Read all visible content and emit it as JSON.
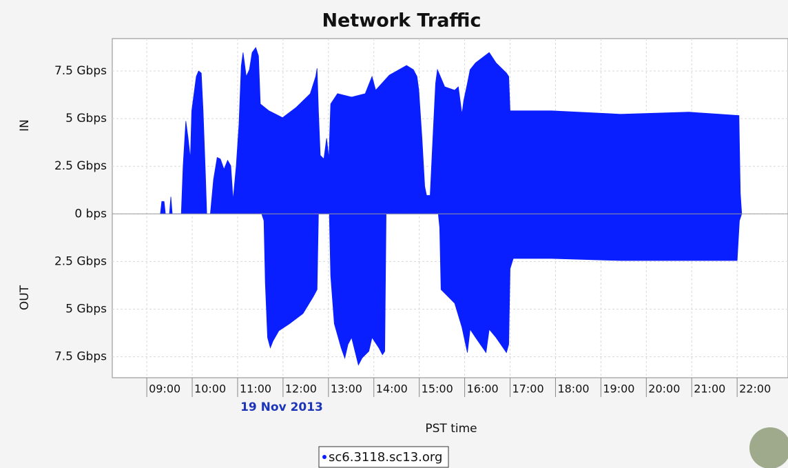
{
  "chart_data": {
    "type": "area",
    "title": "Network Traffic",
    "ylabel_top": "IN",
    "ylabel_bottom": "OUT",
    "xlabel": "PST time",
    "date_label": "19 Nov 2013",
    "xlim": [
      8.24,
      23.12
    ],
    "ylim": [
      -8.6,
      9.2
    ],
    "grid": true,
    "xticks": [
      {
        "value": 9,
        "label": "09:00"
      },
      {
        "value": 10,
        "label": "10:00"
      },
      {
        "value": 11,
        "label": "11:00"
      },
      {
        "value": 12,
        "label": "12:00"
      },
      {
        "value": 13,
        "label": "13:00"
      },
      {
        "value": 14,
        "label": "14:00"
      },
      {
        "value": 15,
        "label": "15:00"
      },
      {
        "value": 16,
        "label": "16:00"
      },
      {
        "value": 17,
        "label": "17:00"
      },
      {
        "value": 18,
        "label": "18:00"
      },
      {
        "value": 19,
        "label": "19:00"
      },
      {
        "value": 20,
        "label": "20:00"
      },
      {
        "value": 21,
        "label": "21:00"
      },
      {
        "value": 22,
        "label": "22:00"
      }
    ],
    "yticks": [
      {
        "value": 7.5,
        "label": "7.5 Gbps"
      },
      {
        "value": 5,
        "label": "5 Gbps"
      },
      {
        "value": 2.5,
        "label": "2.5 Gbps"
      },
      {
        "value": 0,
        "label": "0 bps"
      },
      {
        "value": -2.5,
        "label": "2.5 Gbps"
      },
      {
        "value": -5,
        "label": "5 Gbps"
      },
      {
        "value": -7.5,
        "label": "7.5 Gbps"
      }
    ],
    "series": [
      {
        "name": "sc6.3118.sc13.org",
        "color": "#0a1fff",
        "x": [
          9.3,
          9.33,
          9.38,
          9.41,
          9.5,
          9.53,
          9.56,
          9.76,
          9.8,
          9.86,
          9.91,
          9.96,
          9.99,
          10.05,
          10.09,
          10.14,
          10.2,
          10.24,
          10.29,
          10.32,
          10.4,
          10.47,
          10.55,
          10.62,
          10.7,
          10.78,
          10.85,
          10.9,
          10.97,
          11.03,
          11.08,
          11.12,
          11.19,
          11.26,
          11.32,
          11.4,
          11.46,
          11.5,
          11.69,
          11.99,
          12.29,
          12.6,
          12.72,
          12.75,
          12.78,
          12.82,
          12.9,
          12.96,
          13.01,
          13.05,
          13.2,
          13.51,
          13.81,
          13.96,
          14.04,
          14.34,
          14.72,
          14.87,
          14.95,
          14.99,
          15.06,
          15.12,
          15.16,
          15.24,
          15.3,
          15.36,
          15.4,
          15.56,
          15.78,
          15.86,
          15.94,
          15.98,
          16.06,
          16.12,
          16.24,
          16.54,
          16.69,
          16.92,
          16.97,
          17.0,
          17.91,
          19.43,
          20.94,
          22.04,
          22.07,
          22.1
        ],
        "values": [
          0,
          0.65,
          0.65,
          0,
          0,
          0.9,
          0,
          0,
          2.52,
          4.87,
          3.97,
          2.88,
          5.41,
          6.49,
          7.21,
          7.5,
          7.39,
          5.41,
          2.16,
          0,
          0,
          1.8,
          2.96,
          2.88,
          2.34,
          2.81,
          2.52,
          0.72,
          2.52,
          4.69,
          7.75,
          8.47,
          7.21,
          7.57,
          8.47,
          8.73,
          8.29,
          5.77,
          5.41,
          5.05,
          5.59,
          6.31,
          7.21,
          7.64,
          5.41,
          3.07,
          2.88,
          3.97,
          2.88,
          5.77,
          6.31,
          6.13,
          6.31,
          7.21,
          6.49,
          7.28,
          7.79,
          7.57,
          7.21,
          6.49,
          3.97,
          1.44,
          0.97,
          0.97,
          3.97,
          6.85,
          7.57,
          6.67,
          6.49,
          6.67,
          5.23,
          5.95,
          6.85,
          7.57,
          7.93,
          8.47,
          7.93,
          7.39,
          7.21,
          5.41,
          5.41,
          5.23,
          5.34,
          5.16,
          1.08,
          0
        ]
      },
      {
        "color": "#0a1fff",
        "x": [
          11.53,
          11.58,
          11.61,
          11.66,
          11.72,
          11.78,
          11.91,
          12.14,
          12.44,
          12.67,
          12.75,
          12.78,
          13.02,
          13.05,
          13.13,
          13.28,
          13.36,
          13.43,
          13.51,
          13.66,
          13.74,
          13.89,
          13.96,
          14.11,
          14.19,
          14.24,
          14.27,
          15.42,
          15.45,
          15.48,
          15.63,
          15.78,
          15.94,
          16.06,
          16.12,
          16.24,
          16.47,
          16.54,
          16.69,
          16.92,
          16.97,
          17.0,
          17.07,
          17.91,
          19.43,
          20.94,
          22.0,
          22.05,
          22.1
        ],
        "values": [
          0,
          -0.36,
          -3.61,
          -6.49,
          -7.03,
          -6.67,
          -6.13,
          -5.77,
          -5.23,
          -4.33,
          -3.97,
          0,
          0,
          -3.25,
          -5.77,
          -7.03,
          -7.57,
          -6.85,
          -6.49,
          -7.93,
          -7.57,
          -7.21,
          -6.49,
          -7.03,
          -7.39,
          -7.21,
          0,
          0,
          -0.72,
          -3.97,
          -4.33,
          -4.69,
          -5.95,
          -7.28,
          -6.06,
          -6.49,
          -7.28,
          -6.06,
          -6.49,
          -7.28,
          -6.85,
          -2.88,
          -2.34,
          -2.34,
          -2.45,
          -2.45,
          -2.45,
          -0.36,
          0
        ]
      }
    ]
  }
}
